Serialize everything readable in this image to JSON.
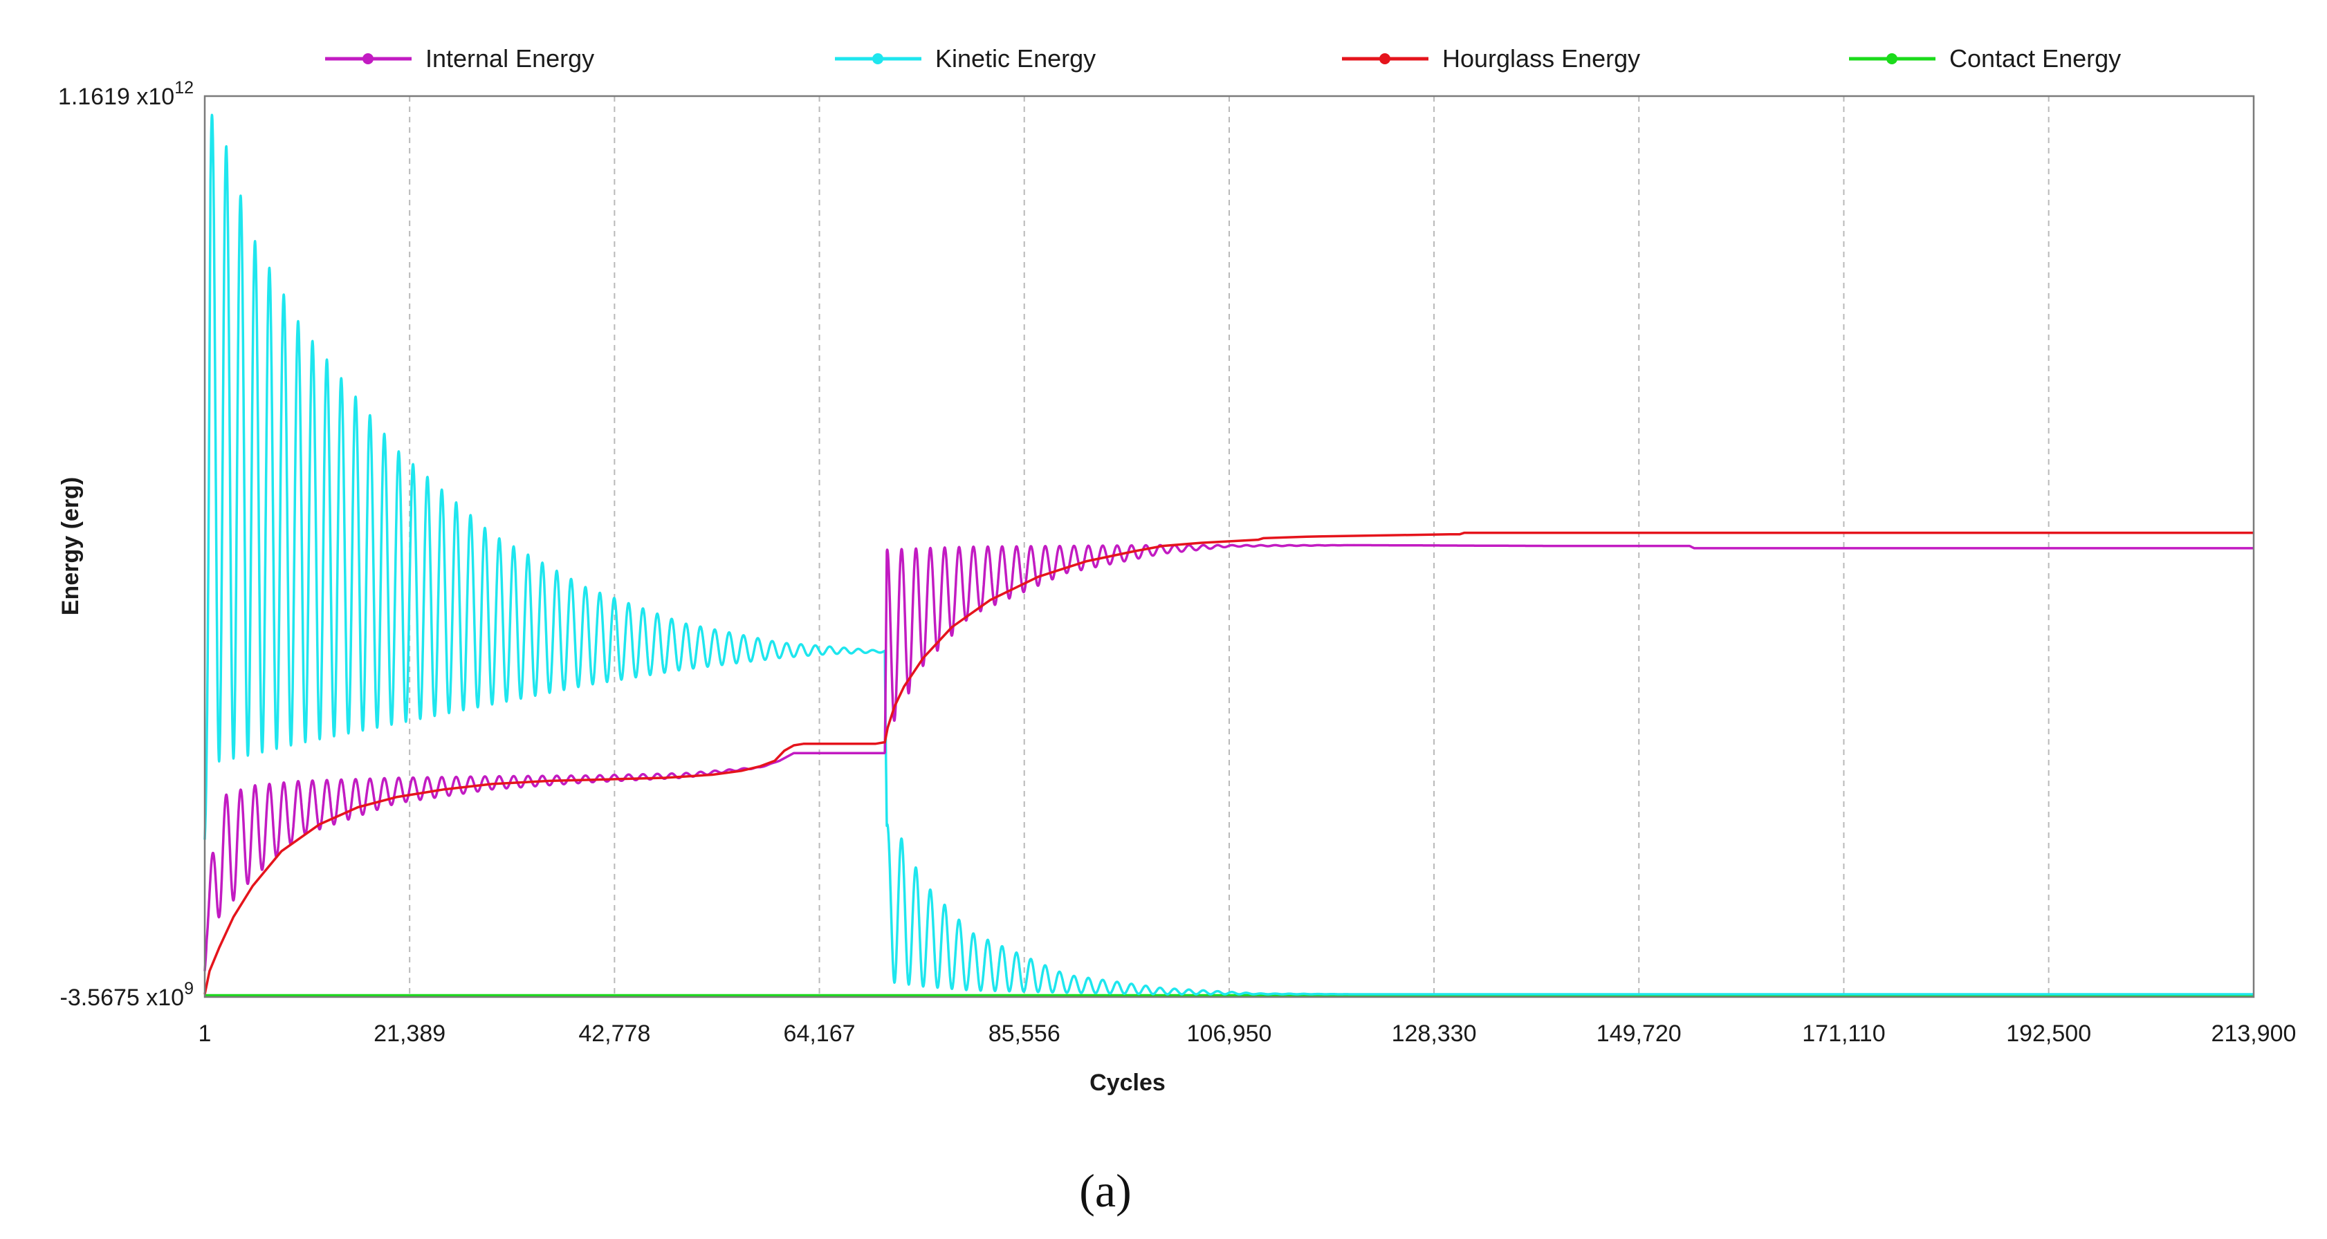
{
  "chart_data": {
    "type": "line",
    "title": "",
    "xlabel": "Cycles",
    "ylabel": "Energy (erg)",
    "caption": "(a)",
    "x_ticks": [
      "1",
      "21,389",
      "42,778",
      "64,167",
      "85,556",
      "106,950",
      "128,330",
      "149,720",
      "171,110",
      "192,500",
      "213,900"
    ],
    "x_tick_values": [
      1,
      21389,
      42778,
      64167,
      85556,
      106950,
      128330,
      149720,
      171110,
      192500,
      213900
    ],
    "xlim": [
      1,
      213900
    ],
    "ylim": [
      -3567500000.0,
      1161900000000.0
    ],
    "y_ticks": [
      {
        "mantissa": "1.1619 x10",
        "exponent": "12",
        "value": 1161900000000.0
      },
      {
        "mantissa": "-3.5675 x10",
        "exponent": "9",
        "value": -3567500000.0
      }
    ],
    "grid": "vertical dashed",
    "legend_position": "top",
    "series": [
      {
        "name": "Internal Energy",
        "color": "#c21bc2",
        "envelope": {
          "x": [
            1,
            200,
            1500,
            5000,
            10000,
            20000,
            30000,
            40000,
            50000,
            58000,
            60000,
            61500,
            62500,
            70000,
            71000,
            71200,
            75000,
            80000,
            90000,
            100000,
            107000,
            120000,
            140000,
            155000,
            155500,
            170000,
            190000,
            213900
          ],
          "upper": [
            30000000000.0,
            120000000000.0,
            255000000000.0,
            270000000000.0,
            276000000000.0,
            280000000000.0,
            282000000000.0,
            283000000000.0,
            286000000000.0,
            294000000000.0,
            302000000000.0,
            312000000000.0,
            312000000000.0,
            312000000000.0,
            312000000000.0,
            575000000000.0,
            577000000000.0,
            579000000000.0,
            580000000000.0,
            581000000000.0,
            581000000000.0,
            581000000000.0,
            580000000000.0,
            580000000000.0,
            577000000000.0,
            577000000000.0,
            577000000000.0,
            577000000000.0
          ],
          "lower": [
            30000000000.0,
            60000000000.0,
            100000000000.0,
            150000000000.0,
            205000000000.0,
            247000000000.0,
            265000000000.0,
            274000000000.0,
            280000000000.0,
            293000000000.0,
            302000000000.0,
            312000000000.0,
            312000000000.0,
            312000000000.0,
            312000000000.0,
            335000000000.0,
            425000000000.0,
            490000000000.0,
            545000000000.0,
            570000000000.0,
            579000000000.0,
            581000000000.0,
            580000000000.0,
            580000000000.0,
            577000000000.0,
            577000000000.0,
            577000000000.0,
            577000000000.0
          ]
        },
        "period_cycles": 1500
      },
      {
        "name": "Kinetic Energy",
        "color": "#1ee6ee",
        "envelope": {
          "x": [
            1,
            200,
            600,
            1000,
            5000,
            10000,
            20000,
            30000,
            40000,
            50000,
            60000,
            65000,
            70000,
            71000,
            71200,
            72000,
            75000,
            80000,
            90000,
            100000,
            110000,
            120000,
            213900
          ],
          "upper": [
            200000000000.0,
            600000000000.0,
            1130000000000.0,
            1150000000000.0,
            980000000000.0,
            865000000000.0,
            705000000000.0,
            595000000000.0,
            525000000000.0,
            480000000000.0,
            455000000000.0,
            450000000000.0,
            445000000000.0,
            445000000000.0,
            220000000000.0,
            220000000000.0,
            145000000000.0,
            80000000000.0,
            25000000000.0,
            8000000000.0,
            1000000000.0,
            0,
            0
          ],
          "lower": [
            200000000000.0,
            260000000000.0,
            300000000000.0,
            300000000000.0,
            310000000000.0,
            325000000000.0,
            350000000000.0,
            375000000000.0,
            400000000000.0,
            420000000000.0,
            435000000000.0,
            440000000000.0,
            442000000000.0,
            442000000000.0,
            30000000000.0,
            15000000000.0,
            10000000000.0,
            5000000000.0,
            2000000000.0,
            0,
            0,
            0,
            0
          ]
        },
        "period_cycles": 1500
      },
      {
        "name": "Hourglass Energy",
        "color": "#e5141c",
        "x": [
          1,
          500,
          1500,
          3000,
          5000,
          8000,
          12000,
          16000,
          20000,
          25000,
          30000,
          36000,
          42000,
          48000,
          53000,
          56000,
          58000,
          59500,
          60500,
          61500,
          62500,
          65000,
          70000,
          71000,
          71300,
          72000,
          73000,
          75000,
          78000,
          82000,
          87000,
          92000,
          97000,
          100000,
          104000,
          107000,
          110000,
          110500,
          115000,
          120000,
          125000,
          130000,
          131000,
          131500,
          140000,
          150000,
          180000,
          213900
        ],
        "y": [
          0,
          30000000000.0,
          60000000000.0,
          100000000000.0,
          140000000000.0,
          185000000000.0,
          220000000000.0,
          242000000000.0,
          255000000000.0,
          265000000000.0,
          272000000000.0,
          276000000000.0,
          278000000000.0,
          280000000000.0,
          284000000000.0,
          289000000000.0,
          295000000000.0,
          302000000000.0,
          315000000000.0,
          322000000000.0,
          324000000000.0,
          324000000000.0,
          324000000000.0,
          326000000000.0,
          345000000000.0,
          372000000000.0,
          398000000000.0,
          435000000000.0,
          475000000000.0,
          510000000000.0,
          540000000000.0,
          560000000000.0,
          573000000000.0,
          580000000000.0,
          584000000000.0,
          586000000000.0,
          588000000000.0,
          590000000000.0,
          592000000000.0,
          593000000000.0,
          594000000000.0,
          595000000000.0,
          595000000000.0,
          597000000000.0,
          597000000000.0,
          597000000000.0,
          597000000000.0,
          597000000000.0
        ]
      },
      {
        "name": "Contact Energy",
        "color": "#1bdb1b",
        "x": [
          1,
          213900
        ],
        "y": [
          -2000000000.0,
          -2000000000.0
        ]
      }
    ]
  }
}
